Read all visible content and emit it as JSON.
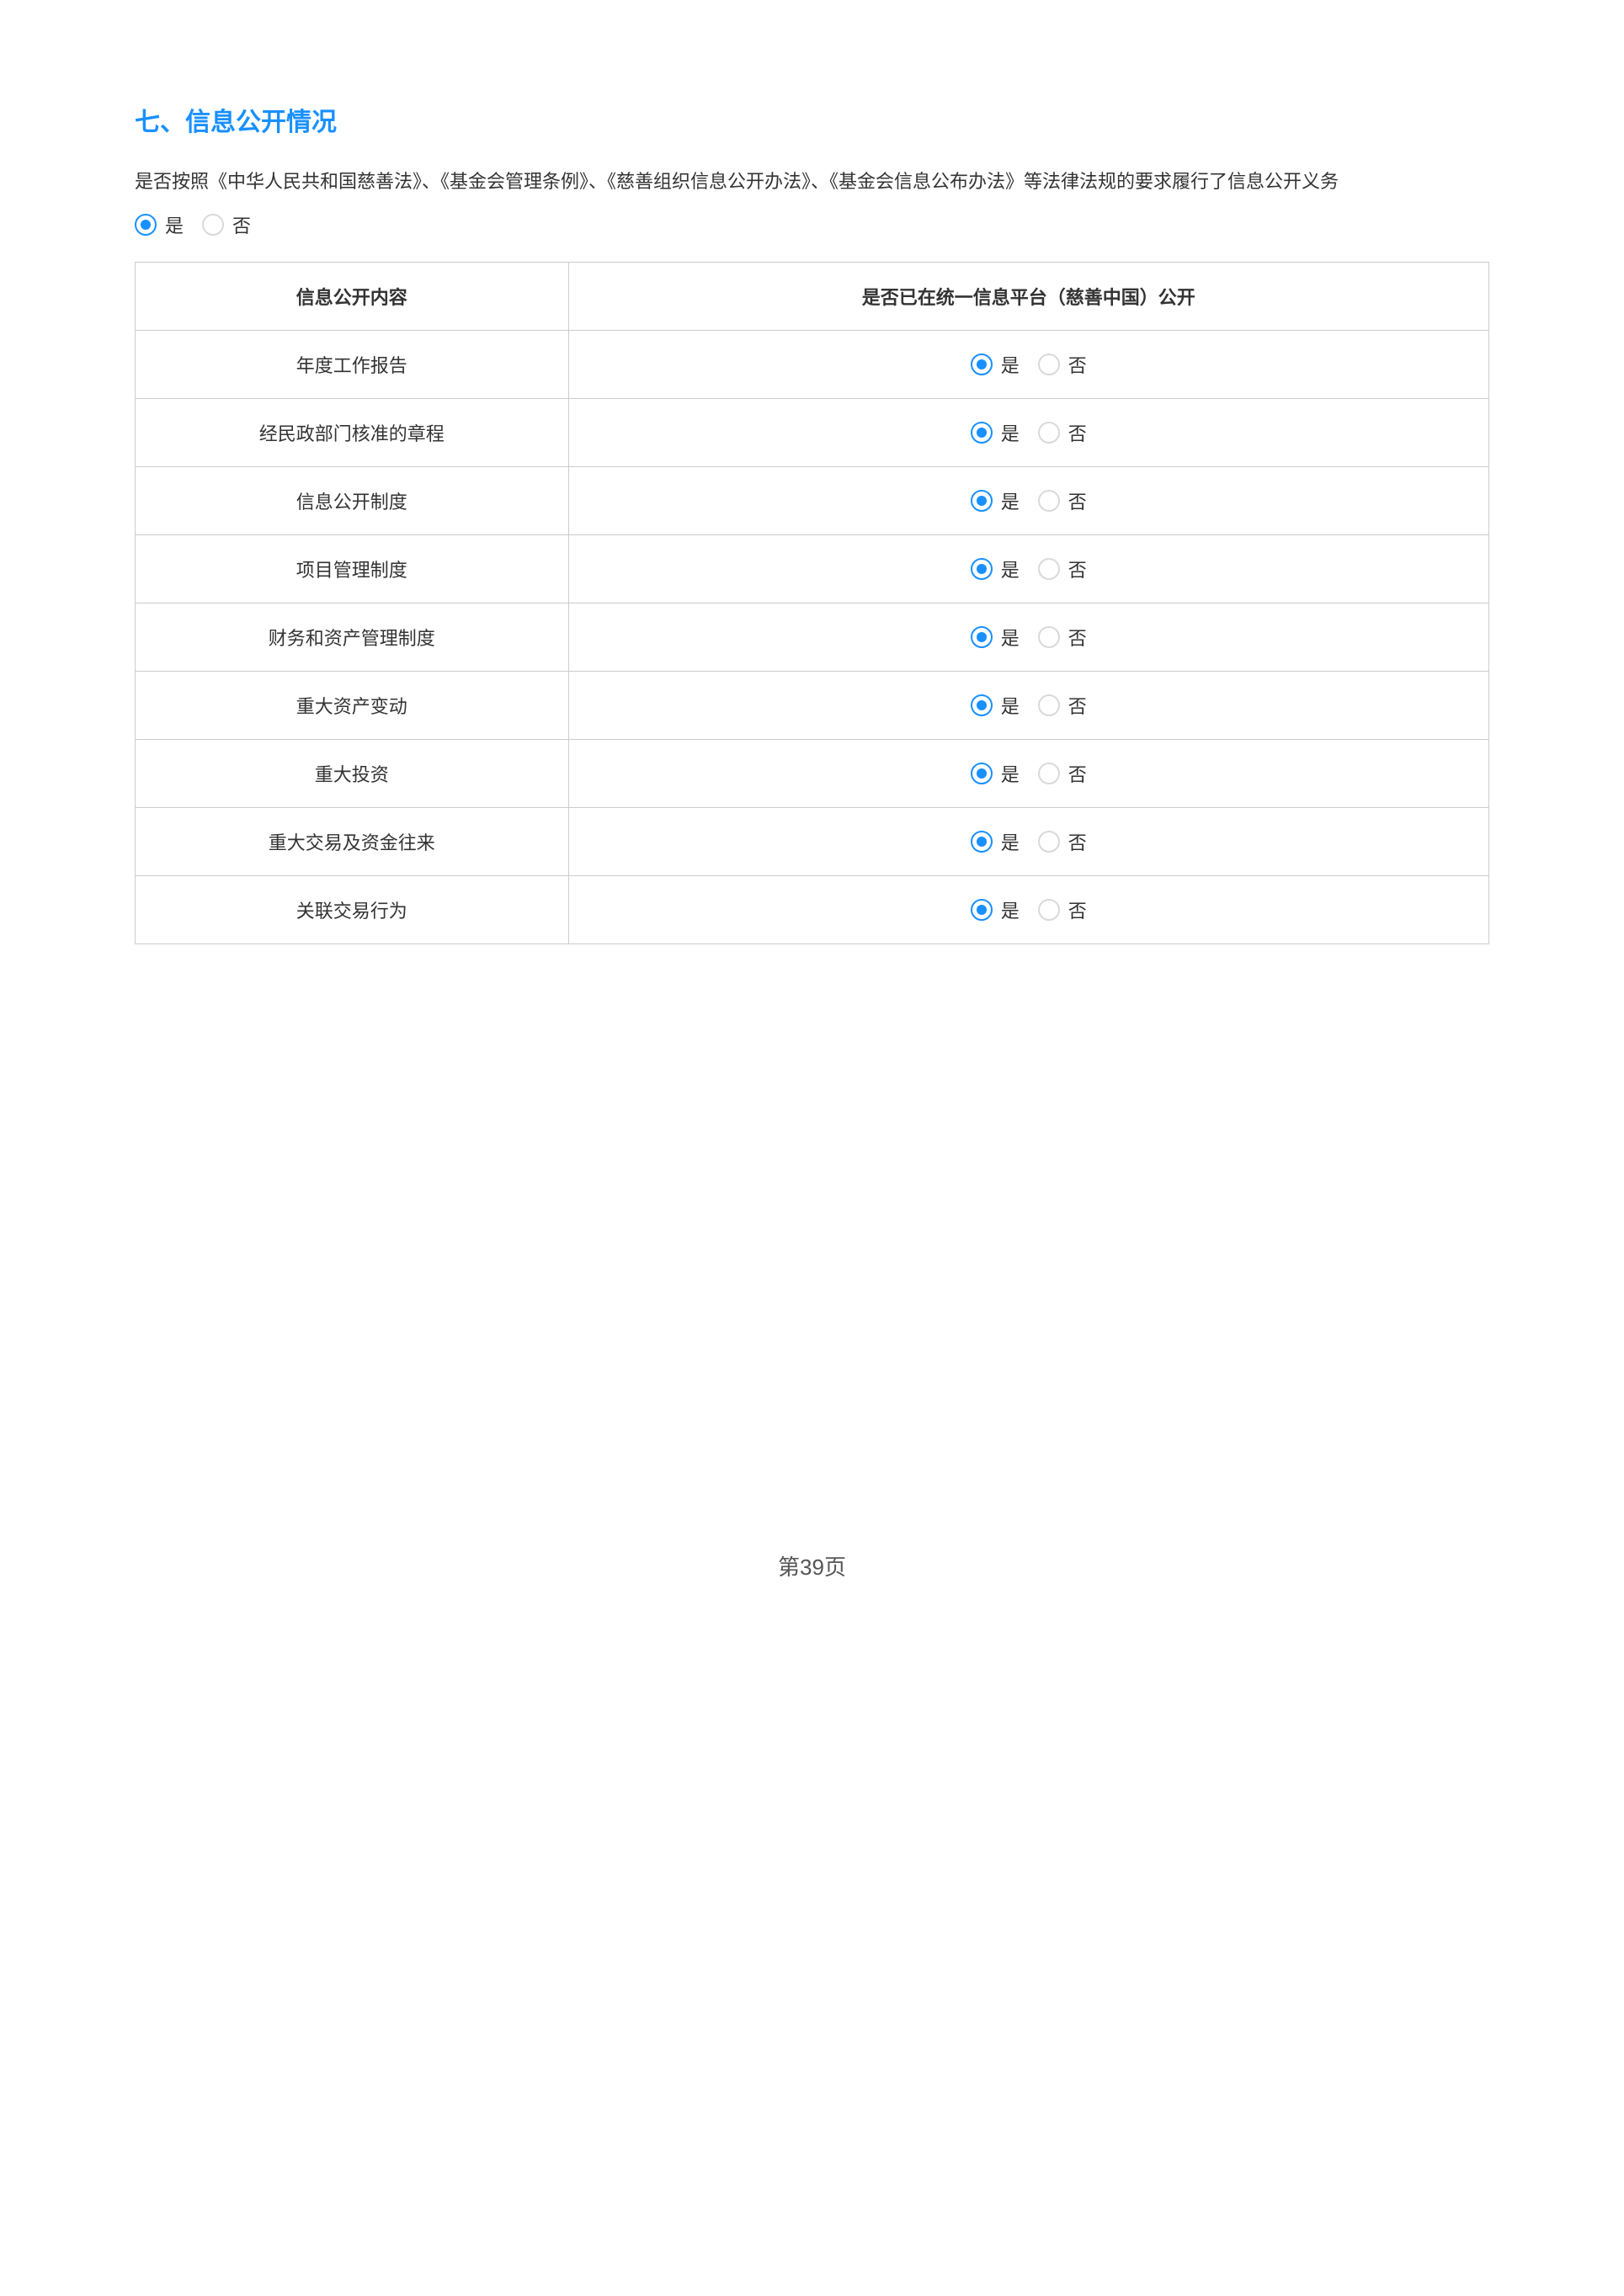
{
  "section": {
    "title": "七、信息公开情况",
    "question": "是否按照《中华人民共和国慈善法》、《基金会管理条例》、《慈善组织信息公开办法》、《基金会信息公布办法》等法律法规的要求履行了信息公开义务",
    "main_answer": "yes",
    "radio_labels": {
      "yes": "是",
      "no": "否"
    }
  },
  "table": {
    "headers": {
      "col1": "信息公开内容",
      "col2": "是否已在统一信息平台（慈善中国）公开"
    },
    "rows": [
      {
        "label": "年度工作报告",
        "answer": "yes"
      },
      {
        "label": "经民政部门核准的章程",
        "answer": "yes"
      },
      {
        "label": "信息公开制度",
        "answer": "yes"
      },
      {
        "label": "项目管理制度",
        "answer": "yes"
      },
      {
        "label": "财务和资产管理制度",
        "answer": "yes"
      },
      {
        "label": "重大资产变动",
        "answer": "yes"
      },
      {
        "label": "重大投资",
        "answer": "yes"
      },
      {
        "label": "重大交易及资金往来",
        "answer": "yes"
      },
      {
        "label": "关联交易行为",
        "answer": "yes"
      }
    ]
  },
  "footer": {
    "page_number": "第39页"
  },
  "style": {
    "accent_color": "#1890ff",
    "border_color": "#cccccc",
    "text_color": "#333333",
    "radio_unchecked_border": "#d9d9d9"
  }
}
